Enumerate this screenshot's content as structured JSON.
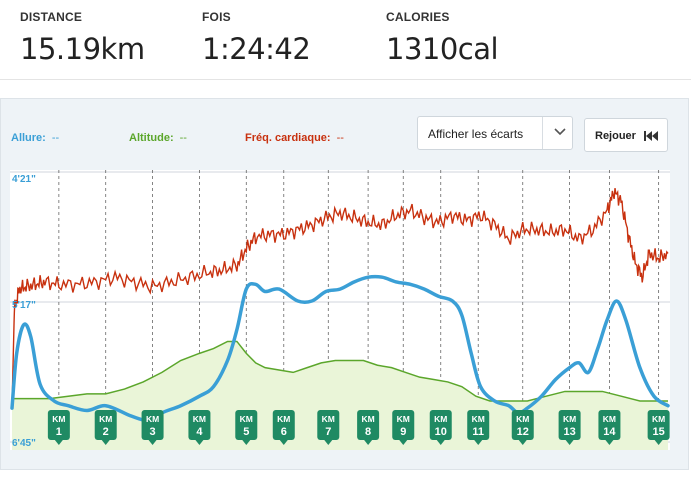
{
  "stats": {
    "distance": {
      "label": "DISTANCE",
      "value": "15.19km"
    },
    "time": {
      "label": "FOIS",
      "value": "1:24:42"
    },
    "calories": {
      "label": "CALORIES",
      "value": "1310cal"
    }
  },
  "legend": {
    "pace": {
      "label": "Allure:",
      "value": "--",
      "color": "#3a9fd6"
    },
    "altitude": {
      "label": "Altitude:",
      "value": "--",
      "color": "#5ba62b"
    },
    "heart_rate": {
      "label": "Fréq. cardiaque:",
      "value": "--",
      "color": "#c8310f"
    }
  },
  "controls": {
    "gaps_select": "Afficher les écarts",
    "replay_label": "Rejouer"
  },
  "chart_data": {
    "type": "line",
    "y_ticks": [
      "4'21\"",
      "5'17\"",
      "6'45\""
    ],
    "km_markers": [
      {
        "top": "KM",
        "num": "1"
      },
      {
        "top": "KM",
        "num": "2"
      },
      {
        "top": "KM",
        "num": "3"
      },
      {
        "top": "KM",
        "num": "4"
      },
      {
        "top": "KM",
        "num": "5"
      },
      {
        "top": "KM",
        "num": "6"
      },
      {
        "top": "KM",
        "num": "7"
      },
      {
        "top": "KM",
        "num": "8"
      },
      {
        "top": "KM",
        "num": "9"
      },
      {
        "top": "KM",
        "num": "10"
      },
      {
        "top": "KM",
        "num": "11"
      },
      {
        "top": "KM",
        "num": "12"
      },
      {
        "top": "KM",
        "num": "13"
      },
      {
        "top": "KM",
        "num": "14"
      },
      {
        "top": "KM",
        "num": "15"
      }
    ],
    "km_x": [
      1.0,
      2.0,
      3.0,
      4.0,
      5.0,
      5.8,
      6.75,
      7.6,
      8.35,
      9.15,
      9.95,
      10.9,
      11.9,
      12.75,
      13.8
    ],
    "x_range": [
      0,
      14
    ],
    "series": [
      {
        "name": "Allure",
        "color": "#3a9fd6",
        "range": [
          0,
          100
        ],
        "x": [
          0,
          0.1,
          0.25,
          0.4,
          0.6,
          0.9,
          1.2,
          1.6,
          2.0,
          2.5,
          2.8,
          3.0,
          3.2,
          3.6,
          4.0,
          4.3,
          4.6,
          4.8,
          5.0,
          5.2,
          5.4,
          5.7,
          6.1,
          6.4,
          6.7,
          7.0,
          7.3,
          7.6,
          7.9,
          8.2,
          8.5,
          8.8,
          9.1,
          9.4,
          9.6,
          9.8,
          10.0,
          10.3,
          10.6,
          10.8,
          11.0,
          11.3,
          11.6,
          11.9,
          12.1,
          12.3,
          12.5,
          12.7,
          12.9,
          13.1,
          13.4,
          13.7,
          14.0
        ],
        "y": [
          5,
          28,
          40,
          35,
          15,
          8,
          6,
          4,
          6,
          2,
          0,
          0,
          3,
          6,
          10,
          14,
          25,
          38,
          55,
          57,
          54,
          55,
          50,
          50,
          54,
          55,
          58,
          60,
          60,
          58,
          57,
          55,
          52,
          50,
          44,
          28,
          14,
          8,
          6,
          3,
          5,
          10,
          17,
          22,
          24,
          20,
          30,
          42,
          50,
          42,
          22,
          10,
          6
        ]
      },
      {
        "name": "Altitude",
        "color": "#5ba62b",
        "range": [
          0,
          100
        ],
        "x": [
          0,
          0.4,
          0.8,
          1.2,
          1.6,
          2.0,
          2.4,
          2.8,
          3.2,
          3.6,
          4.0,
          4.3,
          4.6,
          4.8,
          5.0,
          5.2,
          5.4,
          5.7,
          6.0,
          6.3,
          6.6,
          6.9,
          7.2,
          7.5,
          7.8,
          8.1,
          8.4,
          8.7,
          9.0,
          9.3,
          9.6,
          9.9,
          10.2,
          10.6,
          11.0,
          11.4,
          11.8,
          12.2,
          12.6,
          13.0,
          13.4,
          14.0
        ],
        "y": [
          9,
          9,
          9,
          10,
          11,
          11,
          13,
          16,
          20,
          25,
          28,
          30,
          33,
          33,
          28,
          24,
          22,
          21,
          20,
          22,
          24,
          25,
          25,
          25,
          23,
          22,
          20,
          18,
          17,
          16,
          14,
          10,
          8,
          8,
          8,
          10,
          12,
          12,
          12,
          10,
          8,
          8
        ]
      },
      {
        "name": "Fréq. cardiaque",
        "color": "#c8310f",
        "range": [
          0,
          100
        ],
        "x": [
          0,
          0.05,
          0.15,
          0.3,
          0.5,
          0.7,
          1.0,
          1.4,
          1.8,
          2.2,
          2.6,
          3.0,
          3.4,
          3.8,
          4.2,
          4.5,
          4.8,
          5.0,
          5.2,
          5.5,
          5.8,
          6.1,
          6.4,
          6.7,
          7.0,
          7.3,
          7.6,
          7.9,
          8.2,
          8.5,
          8.8,
          9.1,
          9.4,
          9.7,
          10.0,
          10.3,
          10.6,
          10.9,
          11.2,
          11.5,
          11.8,
          12.1,
          12.4,
          12.7,
          12.85,
          13.0,
          13.15,
          13.3,
          13.45,
          13.6,
          13.8,
          14.0
        ],
        "y": [
          5,
          46,
          55,
          56,
          57,
          58,
          57,
          57,
          58,
          60,
          58,
          56,
          58,
          60,
          62,
          63,
          65,
          72,
          77,
          78,
          78,
          80,
          82,
          85,
          87,
          85,
          83,
          82,
          86,
          88,
          85,
          83,
          86,
          84,
          86,
          82,
          76,
          80,
          80,
          79,
          80,
          76,
          80,
          88,
          96,
          92,
          78,
          66,
          60,
          70,
          68,
          70
        ]
      }
    ]
  }
}
